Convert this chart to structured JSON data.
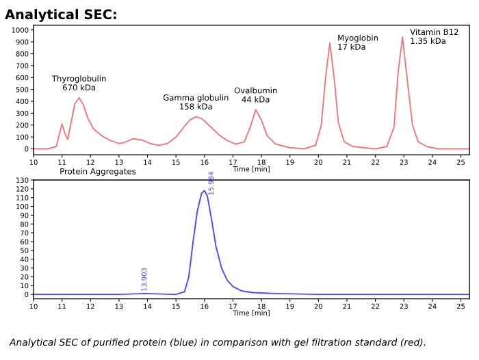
{
  "chart_data": [
    {
      "type": "line",
      "title": "Analytical SEC:",
      "xlabel": "Time [min]",
      "x": [
        10,
        10.5,
        10.8,
        10.9,
        11.0,
        11.1,
        11.2,
        11.3,
        11.45,
        11.6,
        11.75,
        11.9,
        12.1,
        12.4,
        12.7,
        13.0,
        13.2,
        13.5,
        13.8,
        14.1,
        14.4,
        14.7,
        15.0,
        15.3,
        15.5,
        15.7,
        15.9,
        16.2,
        16.5,
        16.8,
        17.1,
        17.4,
        17.6,
        17.8,
        18.0,
        18.2,
        18.5,
        19.0,
        19.5,
        19.9,
        20.1,
        20.25,
        20.4,
        20.55,
        20.7,
        20.9,
        21.2,
        21.6,
        22.0,
        22.4,
        22.65,
        22.8,
        22.95,
        23.1,
        23.3,
        23.5,
        23.8,
        24.2,
        25.3
      ],
      "series": [
        {
          "color": "#f07a7a",
          "values": [
            0,
            0,
            20,
            120,
            210,
            130,
            80,
            200,
            380,
            430,
            370,
            260,
            170,
            110,
            70,
            45,
            55,
            85,
            75,
            45,
            30,
            45,
            100,
            190,
            245,
            270,
            255,
            190,
            120,
            70,
            40,
            60,
            180,
            330,
            240,
            110,
            40,
            10,
            0,
            30,
            200,
            600,
            890,
            600,
            220,
            60,
            20,
            10,
            0,
            20,
            180,
            650,
            940,
            620,
            200,
            60,
            20,
            0,
            0
          ]
        }
      ],
      "annotations": [
        {
          "text": "Thyroglobulin\n670 kDa",
          "x": 11.6,
          "y": 430
        },
        "Protein Aggregates",
        {
          "text": "Gamma globulin\n158 kDa",
          "x": 15.7,
          "y": 270
        },
        {
          "text": "Ovalbumin\n44 kDa",
          "x": 17.8,
          "y": 330
        },
        {
          "text": "Myoglobin\n17 kDa",
          "x": 20.4,
          "y": 890
        },
        {
          "text": "Vitamin B12\n1.35 kDa",
          "x": 22.95,
          "y": 940
        }
      ],
      "xlim": [
        10,
        25.3
      ],
      "xticks": [
        10,
        11,
        12,
        13,
        14,
        15,
        16,
        17,
        18,
        19,
        20,
        21,
        22,
        23,
        24,
        25
      ],
      "ylim": [
        -50,
        1040
      ],
      "yticks": [
        0,
        100,
        200,
        300,
        400,
        500,
        600,
        700,
        800,
        900,
        1000
      ],
      "grid": false,
      "legend": false
    },
    {
      "type": "line",
      "xlabel": "Time [min]",
      "x": [
        10,
        13.0,
        13.9,
        15.0,
        15.3,
        15.45,
        15.6,
        15.75,
        15.9,
        16.0,
        16.1,
        16.25,
        16.4,
        16.6,
        16.8,
        17.0,
        17.3,
        17.7,
        18.5,
        20,
        25.3
      ],
      "series": [
        {
          "color": "#4a4aff",
          "values": [
            0,
            0,
            1,
            0,
            3,
            20,
            60,
            95,
            115,
            118,
            112,
            85,
            55,
            30,
            16,
            9,
            4,
            2,
            1,
            0,
            0
          ]
        }
      ],
      "annotations": [
        {
          "text": "15.984",
          "x": 16.0,
          "y": 118
        },
        {
          "text": "13.903",
          "x": 13.9,
          "y": 1
        },
        "Analytical SEC of purified protein (blue) in comparison with gel filtration standard (red)."
      ],
      "xlim": [
        10,
        25.3
      ],
      "xticks": [
        10,
        11,
        12,
        13,
        14,
        15,
        16,
        17,
        18,
        19,
        20,
        21,
        22,
        23,
        24,
        25
      ],
      "ylim": [
        -5,
        130
      ],
      "yticks": [
        0,
        10,
        20,
        30,
        40,
        50,
        60,
        70,
        80,
        90,
        100,
        110,
        120,
        130
      ],
      "grid": false,
      "legend": false
    }
  ]
}
